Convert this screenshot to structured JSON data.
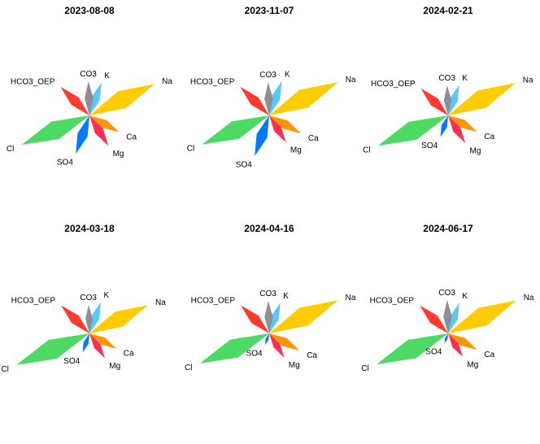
{
  "chart_data": {
    "type": "radar-petal",
    "variables": [
      "Na",
      "K",
      "CO3",
      "HCO3_OEP",
      "Cl",
      "SO4",
      "Mg",
      "Ca"
    ],
    "colors": {
      "Na": "#FFCC00",
      "K": "#5AC8FA",
      "CO3": "#8E8E93",
      "HCO3_OEP": "#FF3B30",
      "Cl": "#4CD964",
      "SO4": "#007AFF",
      "Mg": "#FF2D55",
      "Ca": "#FF9500"
    },
    "panels": [
      {
        "title": "2023-08-08",
        "values": {
          "Na": 0.89,
          "K": 0.43,
          "CO3": 0.42,
          "HCO3_OEP": 0.5,
          "Cl": 0.91,
          "SO4": 0.5,
          "Mg": 0.44,
          "Ca": 0.42
        }
      },
      {
        "title": "2023-11-07",
        "values": {
          "Na": 0.94,
          "K": 0.45,
          "CO3": 0.41,
          "HCO3_OEP": 0.5,
          "Cl": 0.9,
          "SO4": 0.53,
          "Mg": 0.39,
          "Ca": 0.45
        }
      },
      {
        "title": "2024-02-21",
        "values": {
          "Na": 0.92,
          "K": 0.4,
          "CO3": 0.37,
          "HCO3_OEP": 0.47,
          "Cl": 0.94,
          "SO4": 0.28,
          "Mg": 0.4,
          "Ca": 0.41
        }
      },
      {
        "title": "2024-03-18",
        "values": {
          "Na": 0.8,
          "K": 0.41,
          "CO3": 0.35,
          "HCO3_OEP": 0.49,
          "Cl": 0.98,
          "SO4": 0.25,
          "Mg": 0.36,
          "Ca": 0.38
        }
      },
      {
        "title": "2024-04-16",
        "values": {
          "Na": 0.94,
          "K": 0.4,
          "CO3": 0.4,
          "HCO3_OEP": 0.49,
          "Cl": 0.93,
          "SO4": 0.15,
          "Mg": 0.35,
          "Ca": 0.43
        }
      },
      {
        "title": "2024-06-17",
        "values": {
          "Na": 0.93,
          "K": 0.4,
          "CO3": 0.41,
          "HCO3_OEP": 0.49,
          "Cl": 0.96,
          "SO4": 0.13,
          "Mg": 0.34,
          "Ca": 0.41
        }
      }
    ]
  }
}
